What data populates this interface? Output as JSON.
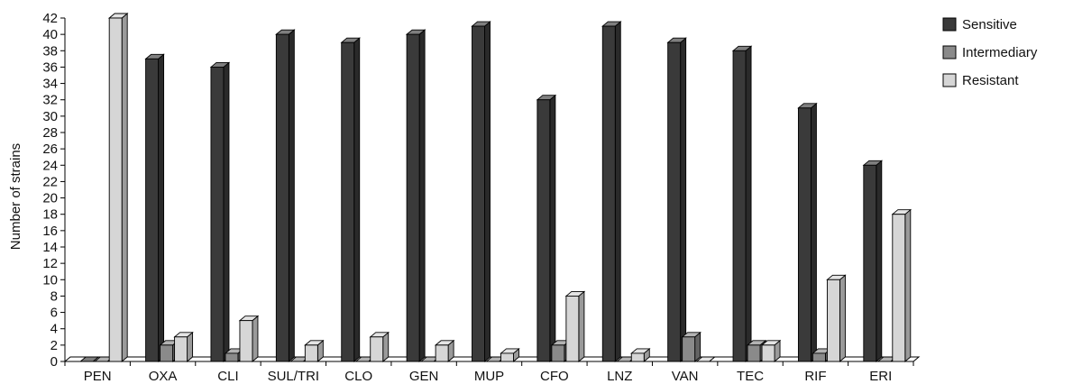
{
  "chart_data": {
    "type": "bar",
    "title": "",
    "xlabel": "",
    "ylabel": "Number of strains",
    "ylim": [
      0,
      42
    ],
    "yticks": [
      0,
      2,
      4,
      6,
      8,
      10,
      12,
      14,
      16,
      18,
      20,
      22,
      24,
      26,
      28,
      30,
      32,
      34,
      36,
      38,
      40,
      42
    ],
    "categories": [
      "PEN",
      "OXA",
      "CLI",
      "SUL/TRI",
      "CLO",
      "GEN",
      "MUP",
      "CFO",
      "LNZ",
      "VAN",
      "TEC",
      "RIF",
      "ERI"
    ],
    "series": [
      {
        "name": "Sensitive",
        "color": "#3a3a3a",
        "values": [
          0,
          37,
          36,
          40,
          39,
          40,
          41,
          32,
          41,
          39,
          38,
          31,
          24
        ]
      },
      {
        "name": "Intermediary",
        "color": "#8a8a8a",
        "values": [
          0,
          2,
          1,
          0,
          0,
          0,
          0,
          2,
          0,
          3,
          2,
          1,
          0
        ]
      },
      {
        "name": "Resistant",
        "color": "#d6d6d6",
        "values": [
          42,
          3,
          5,
          2,
          3,
          2,
          1,
          8,
          1,
          0,
          2,
          10,
          18
        ]
      }
    ],
    "legend": "top-right",
    "grid": false,
    "style": "3d-bars"
  }
}
